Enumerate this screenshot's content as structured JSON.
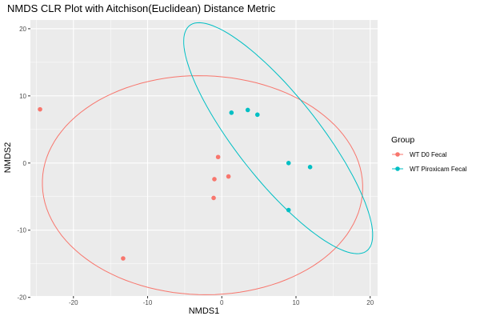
{
  "chart_data": {
    "type": "scatter",
    "title": "NMDS CLR Plot with Aitchison(Euclidean) Distance Metric",
    "xlabel": "NMDS1",
    "ylabel": "NMDS2",
    "xlim": [
      -25.8,
      21.0
    ],
    "ylim": [
      -19.8,
      21.3
    ],
    "x_ticks": [
      -20,
      -10,
      0,
      10,
      20
    ],
    "y_ticks": [
      -20,
      -10,
      0,
      10,
      20
    ],
    "grid": true,
    "legend": {
      "title": "Group",
      "placement": "right"
    },
    "series": [
      {
        "name": "WT D0 Fecal",
        "color": "#F8766D",
        "points": [
          {
            "x": -24.5,
            "y": 8.0
          },
          {
            "x": -13.3,
            "y": -14.2
          },
          {
            "x": -0.5,
            "y": 0.9
          },
          {
            "x": -1.0,
            "y": -2.4
          },
          {
            "x": 0.9,
            "y": -2.0
          },
          {
            "x": -1.1,
            "y": -5.2
          }
        ],
        "ellipse": {
          "cx": -2.6,
          "cy": -3.3,
          "rx": 21.6,
          "ry": 16.3,
          "angle": -2
        }
      },
      {
        "name": "WT Piroxicam Fecal",
        "color": "#00BFC4",
        "points": [
          {
            "x": 1.3,
            "y": 7.5
          },
          {
            "x": 3.5,
            "y": 7.9
          },
          {
            "x": 4.8,
            "y": 7.2
          },
          {
            "x": 9.0,
            "y": 0.0
          },
          {
            "x": 11.9,
            "y": -0.6
          },
          {
            "x": 9.0,
            "y": -7.0
          }
        ],
        "ellipse": {
          "cx": 7.6,
          "cy": 3.7,
          "rx": 20.6,
          "ry": 5.8,
          "angle": -55
        }
      }
    ]
  }
}
